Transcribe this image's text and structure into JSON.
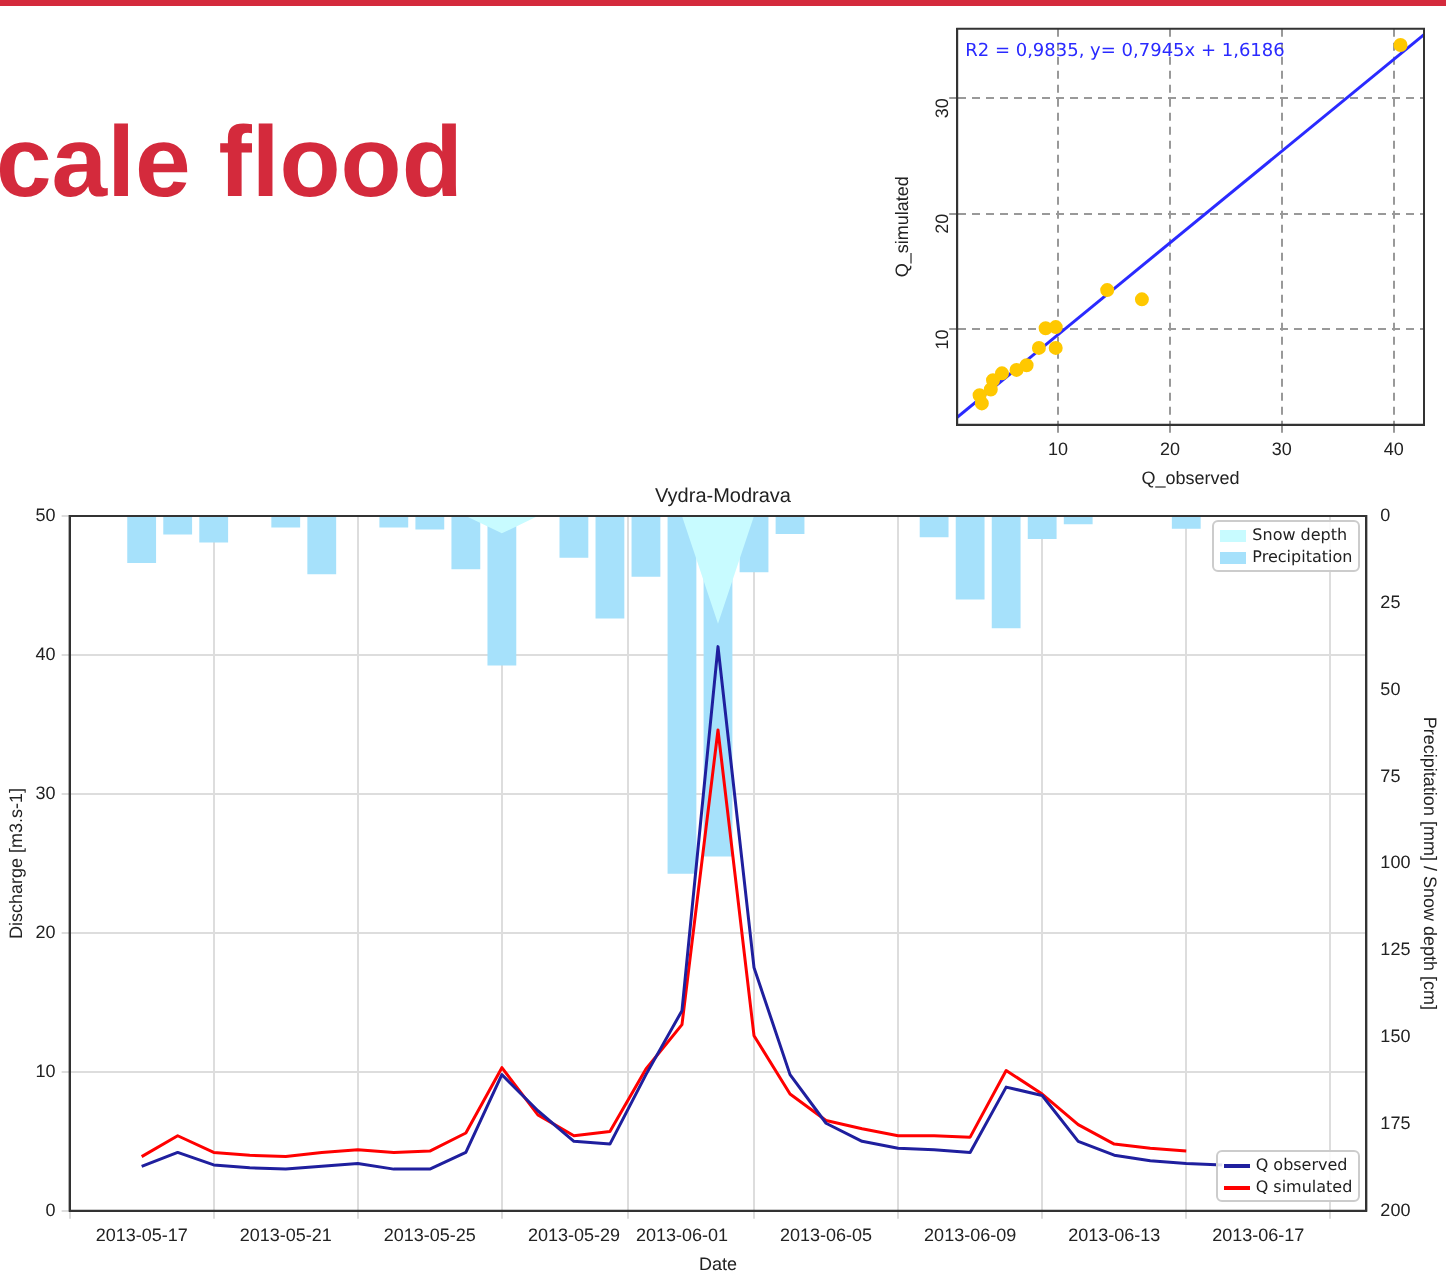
{
  "chart_data": [
    {
      "type": "scatter",
      "title": "cale flood",
      "xlabel": "Q_observed",
      "ylabel": "Q_simulated",
      "annotations": [
        "R2 = 0,9835, y= 0,7945x + 1,6186"
      ],
      "xlim": [
        1,
        42.7
      ],
      "ylim": [
        1.75,
        36
      ],
      "xticks": [
        10,
        20,
        30,
        40
      ],
      "yticks": [
        10,
        20,
        30
      ],
      "grid": true,
      "marker": "circle",
      "series": [
        {
          "color": "#ffc800",
          "x": [
            3.0,
            4.2,
            7.2,
            9.8,
            14.4,
            40.6,
            17.5,
            9.8,
            6.3,
            8.9,
            8.3,
            5.0,
            4.0,
            3.2
          ],
          "values": [
            4.3,
            5.6,
            6.9,
            10.2,
            13.4,
            34.6,
            12.6,
            8.4,
            6.5,
            10.1,
            8.4,
            6.2,
            4.8,
            3.6
          ]
        },
        {
          "type": "line",
          "marker": "none",
          "color": "#2a2aff",
          "x": [
            1,
            42.7
          ],
          "values": [
            2.4,
            35.5
          ]
        }
      ]
    },
    {
      "type": "line",
      "title": "Vydra-Modrava",
      "xlabel": "Date",
      "ylabel": "Discharge [m3.s-1]",
      "y2label": "Precipitation [mm] / Snow depth [cm]",
      "x": [
        "2013-05-17",
        "2013-05-18",
        "2013-05-19",
        "2013-05-20",
        "2013-05-21",
        "2013-05-22",
        "2013-05-23",
        "2013-05-24",
        "2013-05-25",
        "2013-05-26",
        "2013-05-27",
        "2013-05-28",
        "2013-05-29",
        "2013-05-30",
        "2013-05-31",
        "2013-06-01",
        "2013-06-02",
        "2013-06-03",
        "2013-06-04",
        "2013-06-05",
        "2013-06-06",
        "2013-06-07",
        "2013-06-08",
        "2013-06-09",
        "2013-06-10",
        "2013-06-11",
        "2013-06-12",
        "2013-06-13",
        "2013-06-14",
        "2013-06-15",
        "2013-06-16",
        "2013-06-17",
        "2013-06-18"
      ],
      "xlim": [
        "2013-05-15",
        "2013-06-20"
      ],
      "xticks": [
        "2013-05-17",
        "2013-05-21",
        "2013-05-25",
        "2013-05-29",
        "2013-06-01",
        "2013-06-05",
        "2013-06-09",
        "2013-06-13",
        "2013-06-17"
      ],
      "ylim": [
        0,
        50
      ],
      "yticks": [
        0,
        10,
        20,
        30,
        40,
        50
      ],
      "y2lim": [
        200,
        0
      ],
      "y2ticks": [
        0,
        25,
        50,
        75,
        100,
        125,
        150,
        175,
        200
      ],
      "grid": true,
      "legend": "right",
      "series": [
        {
          "name": "Snow depth",
          "type": "area",
          "axis": "y2",
          "color": "#c8fbff",
          "values": [
            0,
            0,
            0,
            0,
            0,
            0,
            0,
            0,
            0,
            0,
            5,
            0,
            0,
            0,
            0,
            0,
            31,
            0,
            0,
            0,
            0,
            0,
            0,
            0,
            0,
            0,
            0,
            0,
            0,
            0,
            0,
            0,
            0
          ]
        },
        {
          "name": "Precipitation",
          "type": "bar",
          "axis": "y2",
          "color": "#a6e1fb",
          "values": [
            13.5,
            5.3,
            7.6,
            null,
            3.3,
            16.8,
            null,
            3.3,
            3.9,
            15.3,
            43,
            null,
            12.0,
            29.5,
            17.5,
            103,
            98,
            16.2,
            5.2,
            null,
            null,
            null,
            6.1,
            24,
            32.3,
            6.6,
            2.4,
            null,
            null,
            3.7,
            null,
            null,
            null
          ]
        },
        {
          "name": "Q observed",
          "type": "line",
          "color": "#1f1f9e",
          "values": [
            3.2,
            4.2,
            3.3,
            3.1,
            3.0,
            3.2,
            3.4,
            3.0,
            3.0,
            4.2,
            9.8,
            7.2,
            5.0,
            4.8,
            9.8,
            14.4,
            40.6,
            17.5,
            9.8,
            6.3,
            5.0,
            4.5,
            4.4,
            4.2,
            8.9,
            8.3,
            5.0,
            4.0,
            3.6,
            3.4,
            3.3,
            null,
            null
          ]
        },
        {
          "name": "Q simulated",
          "type": "line",
          "color": "#ff0000",
          "values": [
            3.9,
            5.4,
            4.2,
            4.0,
            3.9,
            4.2,
            4.4,
            4.2,
            4.3,
            5.6,
            10.3,
            6.9,
            5.4,
            5.7,
            10.2,
            13.4,
            34.6,
            12.6,
            8.4,
            6.5,
            5.9,
            5.4,
            5.4,
            5.3,
            10.1,
            8.4,
            6.2,
            4.8,
            4.5,
            4.3,
            null,
            null,
            null
          ]
        }
      ]
    }
  ]
}
